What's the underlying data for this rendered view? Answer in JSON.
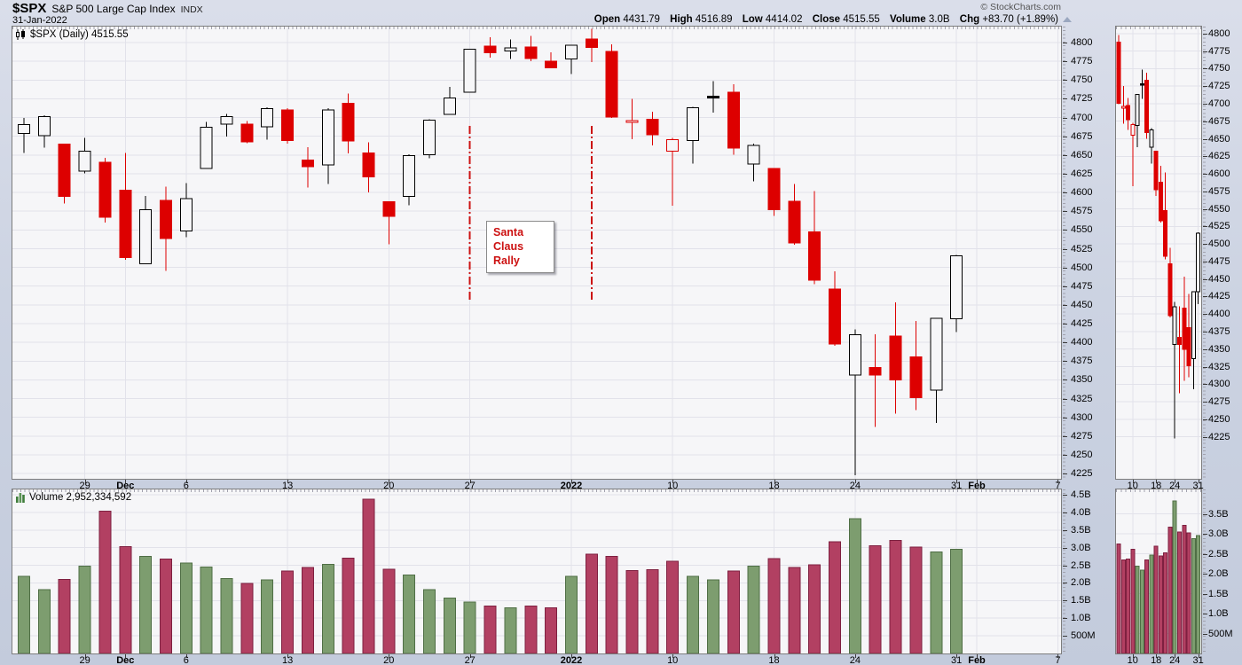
{
  "header": {
    "symbol": "$SPX",
    "index_name": "S&P 500 Large Cap Index",
    "exchange": "INDX",
    "date": "31-Jan-2022",
    "copyright": "© StockCharts.com",
    "quote_fields": [
      {
        "label": "Open",
        "value": "4431.79"
      },
      {
        "label": "High",
        "value": "4516.89"
      },
      {
        "label": "Low",
        "value": "4414.02"
      },
      {
        "label": "Close",
        "value": "4515.55"
      },
      {
        "label": "Volume",
        "value": "3.0B"
      },
      {
        "label": "Chg",
        "value": "+83.70 (+1.89%)"
      }
    ]
  },
  "price_pane": {
    "legend": "$SPX (Daily) 4515.55"
  },
  "volume_pane": {
    "legend": "Volume 2,952,334,592"
  },
  "annotation": {
    "text_lines": [
      "Santa",
      "Claus",
      "Rally"
    ],
    "color": "#cc1111"
  },
  "colors": {
    "candle_down": "#dd0000",
    "candle_up_outline": "#000000",
    "volume_up_fill": "#7d9d6f",
    "volume_up_border": "#4f6e45",
    "volume_down_fill": "#b24062",
    "volume_down_border": "#7e2040",
    "gridline": "#e2e2ea",
    "plot_background": "#f6f6f8",
    "annotation_red": "#cc1111"
  },
  "chart_data": {
    "type": "candlestick",
    "title": "$SPX (Daily)",
    "symbol": "$SPX",
    "timeframe": "Daily",
    "last_price": 4515.55,
    "price_axis": {
      "min": 4225,
      "max": 4800,
      "step": 25
    },
    "volume_axis": {
      "ticks": [
        {
          "label": "4.5B",
          "value": 4.5
        },
        {
          "label": "4.0B",
          "value": 4.0
        },
        {
          "label": "3.5B",
          "value": 3.5
        },
        {
          "label": "3.0B",
          "value": 3.0
        },
        {
          "label": "2.5B",
          "value": 2.5
        },
        {
          "label": "2.0B",
          "value": 2.0
        },
        {
          "label": "1.5B",
          "value": 1.5
        },
        {
          "label": "1.0B",
          "value": 1.0
        },
        {
          "label": "500M",
          "value": 0.5
        }
      ]
    },
    "mini_volume_axis": {
      "ticks": [
        {
          "label": "3.5B",
          "value": 3.5
        },
        {
          "label": "3.0B",
          "value": 3.0
        },
        {
          "label": "2.5B",
          "value": 2.5
        },
        {
          "label": "2.0B",
          "value": 2.0
        },
        {
          "label": "1.5B",
          "value": 1.5
        },
        {
          "label": "1.0B",
          "value": 1.0
        },
        {
          "label": "500M",
          "value": 0.5
        }
      ]
    },
    "x_ticks": [
      {
        "label": "29",
        "i": 3,
        "bold": false
      },
      {
        "label": "Dec",
        "i": 5,
        "bold": true
      },
      {
        "label": "6",
        "i": 8,
        "bold": false
      },
      {
        "label": "13",
        "i": 13,
        "bold": false
      },
      {
        "label": "20",
        "i": 18,
        "bold": false
      },
      {
        "label": "27",
        "i": 22,
        "bold": false
      },
      {
        "label": "2022",
        "i": 27,
        "bold": true
      },
      {
        "label": "10",
        "i": 32,
        "bold": false
      },
      {
        "label": "18",
        "i": 37,
        "bold": false
      },
      {
        "label": "24",
        "i": 41,
        "bold": false
      },
      {
        "label": "31",
        "i": 46,
        "bold": false
      },
      {
        "label": "Feb",
        "i": 47,
        "bold": true
      },
      {
        "label": "7",
        "i": 51,
        "bold": false
      }
    ],
    "mini_start_index": 29,
    "mini_x_ticks": [
      {
        "label": "10",
        "i": 32,
        "bold": false
      },
      {
        "label": "18",
        "i": 37,
        "bold": false
      },
      {
        "label": "24",
        "i": 41,
        "bold": false
      },
      {
        "label": "31",
        "i": 46,
        "bold": false
      }
    ],
    "santa_claus_span": {
      "start_index": 22,
      "end_index": 28,
      "label": "Santa Claus Rally"
    },
    "volume_unit": "billions",
    "candles": [
      {
        "d": "Nov 23",
        "o": 4678.48,
        "h": 4699.39,
        "l": 4652.66,
        "c": 4690.7,
        "v": 2.19
      },
      {
        "d": "Nov 24",
        "o": 4675.78,
        "h": 4702.87,
        "l": 4659.89,
        "c": 4701.46,
        "v": 1.81
      },
      {
        "d": "Nov 26",
        "o": 4664.63,
        "h": 4664.63,
        "l": 4585.43,
        "c": 4594.62,
        "v": 2.1
      },
      {
        "d": "Nov 29",
        "o": 4628.75,
        "h": 4672.95,
        "l": 4625.26,
        "c": 4655.27,
        "v": 2.48
      },
      {
        "d": "Nov 30",
        "o": 4640.25,
        "h": 4646.02,
        "l": 4560.0,
        "c": 4567.0,
        "v": 4.03
      },
      {
        "d": "Dec 1",
        "o": 4602.82,
        "h": 4652.94,
        "l": 4510.27,
        "c": 4513.04,
        "v": 3.03
      },
      {
        "d": "Dec 2",
        "o": 4504.73,
        "h": 4595.46,
        "l": 4504.73,
        "c": 4577.1,
        "v": 2.75
      },
      {
        "d": "Dec 3",
        "o": 4589.49,
        "h": 4608.03,
        "l": 4495.12,
        "c": 4538.43,
        "v": 2.68
      },
      {
        "d": "Dec 6",
        "o": 4548.34,
        "h": 4612.6,
        "l": 4540.51,
        "c": 4591.67,
        "v": 2.56
      },
      {
        "d": "Dec 7",
        "o": 4631.97,
        "h": 4694.04,
        "l": 4631.97,
        "c": 4686.75,
        "v": 2.45
      },
      {
        "d": "Dec 8",
        "o": 4690.86,
        "h": 4705.06,
        "l": 4674.52,
        "c": 4701.21,
        "v": 2.13
      },
      {
        "d": "Dec 9",
        "o": 4691.0,
        "h": 4695.26,
        "l": 4665.98,
        "c": 4667.45,
        "v": 1.98
      },
      {
        "d": "Dec 10",
        "o": 4687.64,
        "h": 4713.57,
        "l": 4670.24,
        "c": 4712.02,
        "v": 2.09
      },
      {
        "d": "Dec 13",
        "o": 4710.3,
        "h": 4712.6,
        "l": 4664.98,
        "c": 4668.97,
        "v": 2.34
      },
      {
        "d": "Dec 14",
        "o": 4642.99,
        "h": 4660.47,
        "l": 4606.52,
        "c": 4634.09,
        "v": 2.44
      },
      {
        "d": "Dec 15",
        "o": 4636.67,
        "h": 4712.6,
        "l": 4611.22,
        "c": 4709.85,
        "v": 2.53
      },
      {
        "d": "Dec 16",
        "o": 4719.13,
        "h": 4731.99,
        "l": 4651.89,
        "c": 4668.67,
        "v": 2.7
      },
      {
        "d": "Dec 17",
        "o": 4652.5,
        "h": 4666.7,
        "l": 4600.22,
        "c": 4620.64,
        "v": 4.38
      },
      {
        "d": "Dec 20",
        "o": 4587.9,
        "h": 4587.9,
        "l": 4531.1,
        "c": 4568.02,
        "v": 2.39
      },
      {
        "d": "Dec 21",
        "o": 4594.96,
        "h": 4651.14,
        "l": 4583.16,
        "c": 4649.23,
        "v": 2.23
      },
      {
        "d": "Dec 22",
        "o": 4650.36,
        "h": 4697.67,
        "l": 4645.53,
        "c": 4696.56,
        "v": 1.81
      },
      {
        "d": "Dec 23",
        "o": 4703.96,
        "h": 4740.74,
        "l": 4703.96,
        "c": 4725.79,
        "v": 1.57
      },
      {
        "d": "Dec 27",
        "o": 4733.99,
        "h": 4791.49,
        "l": 4733.99,
        "c": 4791.19,
        "v": 1.46
      },
      {
        "d": "Dec 28",
        "o": 4795.49,
        "h": 4807.02,
        "l": 4780.04,
        "c": 4786.36,
        "v": 1.35
      },
      {
        "d": "Dec 29",
        "o": 4788.64,
        "h": 4804.06,
        "l": 4778.08,
        "c": 4793.06,
        "v": 1.29
      },
      {
        "d": "Dec 30",
        "o": 4794.23,
        "h": 4808.93,
        "l": 4775.33,
        "c": 4778.73,
        "v": 1.35
      },
      {
        "d": "Dec 31",
        "o": 4775.21,
        "h": 4786.83,
        "l": 4765.75,
        "c": 4766.18,
        "v": 1.29
      },
      {
        "d": "Jan 3",
        "o": 4778.14,
        "h": 4796.64,
        "l": 4758.17,
        "c": 4796.56,
        "v": 2.19
      },
      {
        "d": "Jan 4",
        "o": 4804.51,
        "h": 4818.62,
        "l": 4774.27,
        "c": 4793.54,
        "v": 2.82
      },
      {
        "d": "Jan 5",
        "o": 4787.99,
        "h": 4797.7,
        "l": 4699.44,
        "c": 4700.58,
        "v": 2.75
      },
      {
        "d": "Jan 6",
        "o": 4693.39,
        "h": 4725.01,
        "l": 4671.26,
        "c": 4696.05,
        "v": 2.35
      },
      {
        "d": "Jan 7",
        "o": 4697.66,
        "h": 4707.95,
        "l": 4662.74,
        "c": 4677.03,
        "v": 2.37
      },
      {
        "d": "Jan 10",
        "o": 4655.34,
        "h": 4673.02,
        "l": 4582.24,
        "c": 4670.29,
        "v": 2.61
      },
      {
        "d": "Jan 11",
        "o": 4669.14,
        "h": 4714.13,
        "l": 4638.27,
        "c": 4713.07,
        "v": 2.19
      },
      {
        "d": "Jan 12",
        "o": 4728.59,
        "h": 4748.83,
        "l": 4706.71,
        "c": 4726.35,
        "v": 2.09
      },
      {
        "d": "Jan 13",
        "o": 4733.56,
        "h": 4744.13,
        "l": 4650.29,
        "c": 4659.03,
        "v": 2.34
      },
      {
        "d": "Jan 14",
        "o": 4637.99,
        "h": 4665.13,
        "l": 4614.75,
        "c": 4662.85,
        "v": 2.47
      },
      {
        "d": "Jan 18",
        "o": 4632.24,
        "h": 4632.24,
        "l": 4568.7,
        "c": 4577.11,
        "v": 2.69
      },
      {
        "d": "Jan 19",
        "o": 4588.03,
        "h": 4611.55,
        "l": 4530.2,
        "c": 4532.76,
        "v": 2.44
      },
      {
        "d": "Jan 20",
        "o": 4547.35,
        "h": 4602.11,
        "l": 4477.95,
        "c": 4482.73,
        "v": 2.52
      },
      {
        "d": "Jan 21",
        "o": 4471.38,
        "h": 4494.52,
        "l": 4395.34,
        "c": 4397.94,
        "v": 3.17
      },
      {
        "d": "Jan 24",
        "o": 4356.32,
        "h": 4417.35,
        "l": 4222.62,
        "c": 4410.13,
        "v": 3.82
      },
      {
        "d": "Jan 25",
        "o": 4366.64,
        "h": 4411.01,
        "l": 4287.11,
        "c": 4356.45,
        "v": 3.05
      },
      {
        "d": "Jan 26",
        "o": 4408.43,
        "h": 4453.23,
        "l": 4304.8,
        "c": 4349.93,
        "v": 3.21
      },
      {
        "d": "Jan 27",
        "o": 4380.58,
        "h": 4428.74,
        "l": 4309.5,
        "c": 4326.51,
        "v": 3.02
      },
      {
        "d": "Jan 28",
        "o": 4336.19,
        "h": 4432.72,
        "l": 4292.46,
        "c": 4431.85,
        "v": 2.88
      },
      {
        "d": "Jan 31",
        "o": 4431.79,
        "h": 4516.89,
        "l": 4414.02,
        "c": 4515.55,
        "v": 2.952334592
      }
    ]
  }
}
